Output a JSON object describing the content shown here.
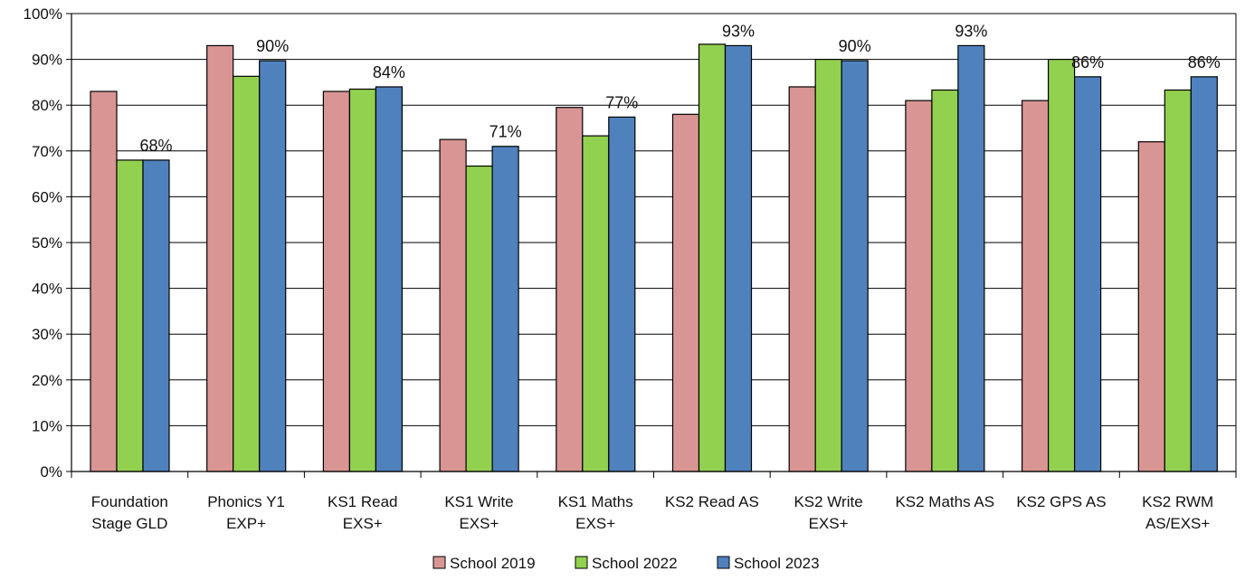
{
  "chart_data": {
    "type": "bar",
    "categories": [
      [
        "Foundation",
        "Stage GLD"
      ],
      [
        "Phonics Y1",
        "EXP+"
      ],
      [
        "KS1 Read",
        "EXS+"
      ],
      [
        "KS1 Write",
        "EXS+"
      ],
      [
        "KS1 Maths",
        "EXS+"
      ],
      [
        "KS2 Read   AS"
      ],
      [
        "KS2 Write",
        "EXS+"
      ],
      [
        "KS2 Maths AS"
      ],
      [
        "KS2 GPS AS"
      ],
      [
        "KS2 RWM",
        "AS/EXS+"
      ]
    ],
    "series": [
      {
        "name": "School 2019",
        "color": "#d99594",
        "values": [
          83,
          93,
          83,
          72.5,
          79.5,
          78,
          84,
          81,
          81,
          72
        ]
      },
      {
        "name": "School 2022",
        "color": "#92d050",
        "values": [
          68,
          86.3,
          83.5,
          66.7,
          73.3,
          93.3,
          90,
          83.3,
          90,
          83.3
        ]
      },
      {
        "name": "School 2023",
        "color": "#4f81bd",
        "values": [
          68,
          89.7,
          84,
          71,
          77.4,
          93,
          89.7,
          93,
          86.2,
          86.2
        ]
      }
    ],
    "data_labels": [
      "68%",
      "90%",
      "84%",
      "71%",
      "77%",
      "93%",
      "90%",
      "93%",
      "86%",
      "86%"
    ],
    "ylim": [
      0,
      100
    ],
    "ytick_step": 10,
    "ytick_labels": [
      "0%",
      "10%",
      "20%",
      "30%",
      "40%",
      "50%",
      "60%",
      "70%",
      "80%",
      "90%",
      "100%"
    ],
    "grid": true,
    "legend_position": "bottom"
  }
}
